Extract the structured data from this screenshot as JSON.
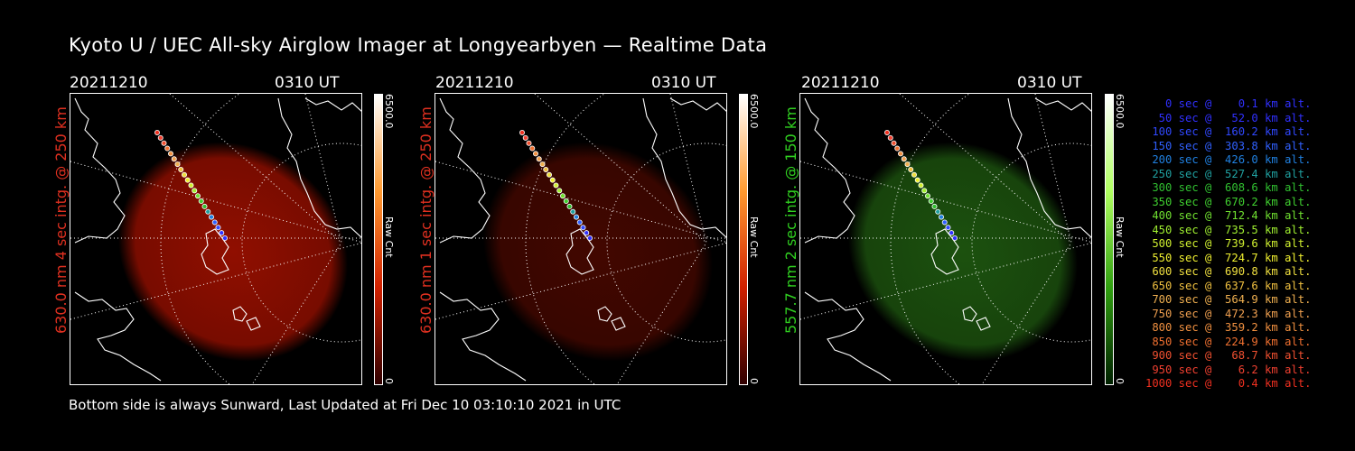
{
  "title": "Kyoto U / UEC All-sky Airglow Imager at Longyearbyen — Realtime Data",
  "footer": "Bottom side is always Sunward, Last Updated at Fri Dec 10 03:10:10 2021 in UTC",
  "panels": [
    {
      "date": "20211210",
      "time": "0310 UT",
      "side_label": "630.0 nm 4 sec intg. @ 250 km",
      "label_color": "#e03020",
      "cbar_max": "6500.0",
      "cbar_min": "0",
      "cbar_unit": "Raw Cnt",
      "glow_color": "#a01000",
      "cbar_colors": [
        "#ffffff",
        "#ff9a30",
        "#d02000",
        "#300000"
      ]
    },
    {
      "date": "20211210",
      "time": "0310 UT",
      "side_label": "630.0 nm 1 sec intg. @ 250 km",
      "label_color": "#e03020",
      "cbar_max": "6500.0",
      "cbar_min": "0",
      "cbar_unit": "Raw Cnt",
      "glow_color": "#4a0800",
      "cbar_colors": [
        "#ffffff",
        "#ff9a30",
        "#d02000",
        "#300000"
      ]
    },
    {
      "date": "20211210",
      "time": "0310 UT",
      "side_label": "557.7 nm 2 sec intg. @ 150 km",
      "label_color": "#30d020",
      "cbar_max": "6500.0",
      "cbar_min": "0",
      "cbar_unit": "Raw Cnt",
      "glow_color": "#1f5a10",
      "cbar_colors": [
        "#ffffff",
        "#b0ff60",
        "#30a010",
        "#002000"
      ]
    }
  ],
  "legend": [
    {
      "text": "   0 sec @    0.1 km alt.",
      "color": "#3030ff"
    },
    {
      "text": "  50 sec @   52.0 km alt.",
      "color": "#3030ff"
    },
    {
      "text": " 100 sec @  160.2 km alt.",
      "color": "#3048ff"
    },
    {
      "text": " 150 sec @  303.8 km alt.",
      "color": "#3060ff"
    },
    {
      "text": " 200 sec @  426.0 km alt.",
      "color": "#2080e0"
    },
    {
      "text": " 250 sec @  527.4 km alt.",
      "color": "#20a0a0"
    },
    {
      "text": " 300 sec @  608.6 km alt.",
      "color": "#30c030"
    },
    {
      "text": " 350 sec @  670.2 km alt.",
      "color": "#40d030"
    },
    {
      "text": " 400 sec @  712.4 km alt.",
      "color": "#70e030"
    },
    {
      "text": " 450 sec @  735.5 km alt.",
      "color": "#a0f030"
    },
    {
      "text": " 500 sec @  739.6 km alt.",
      "color": "#d0f030"
    },
    {
      "text": " 550 sec @  724.7 km alt.",
      "color": "#f0f030"
    },
    {
      "text": " 600 sec @  690.8 km alt.",
      "color": "#f0e040"
    },
    {
      "text": " 650 sec @  637.6 km alt.",
      "color": "#f0c040"
    },
    {
      "text": " 700 sec @  564.9 km alt.",
      "color": "#f0b050"
    },
    {
      "text": " 750 sec @  472.3 km alt.",
      "color": "#f0a050"
    },
    {
      "text": " 800 sec @  359.2 km alt.",
      "color": "#f09040"
    },
    {
      "text": " 850 sec @  224.9 km alt.",
      "color": "#f07030"
    },
    {
      "text": " 900 sec @   68.7 km alt.",
      "color": "#f05030"
    },
    {
      "text": " 950 sec @    6.2 km alt.",
      "color": "#f04030"
    },
    {
      "text": "1000 sec @    0.4 km alt.",
      "color": "#f03020"
    }
  ]
}
